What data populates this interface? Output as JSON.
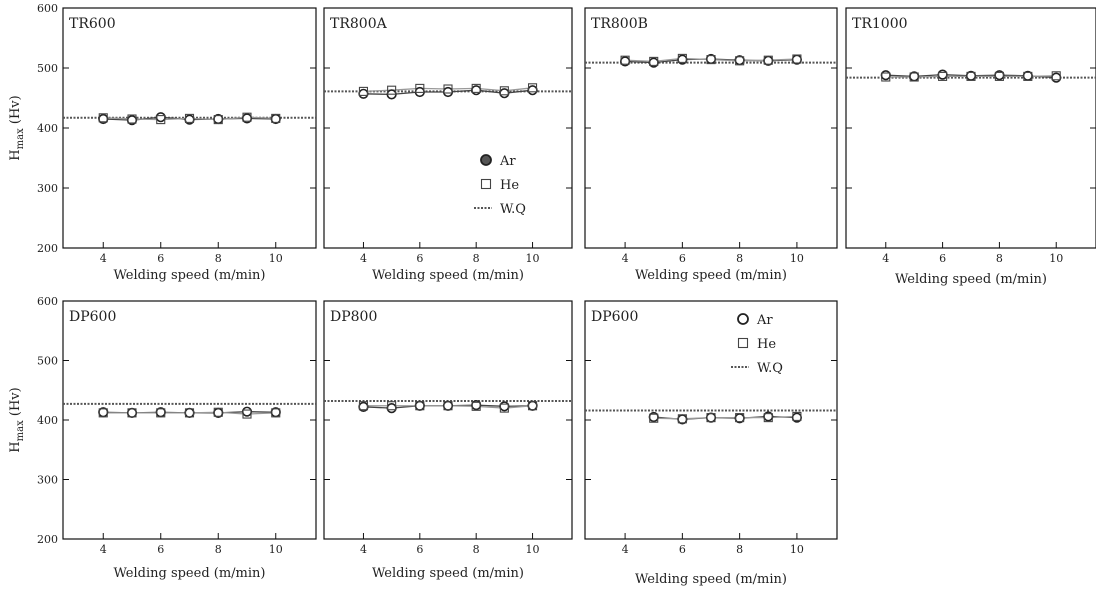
{
  "figure": {
    "y_label": "H",
    "y_label_subscript": "max",
    "y_label_unit": "(Hv)",
    "x_label": "Welding speed (m/min)"
  },
  "legend": {
    "items": [
      {
        "label": "Ar",
        "marker": "circle"
      },
      {
        "label": "He",
        "marker": "square"
      },
      {
        "label": "W.Q",
        "marker": "dotted-line"
      }
    ]
  },
  "colors": {
    "ar_marker_edge": "#222222",
    "ar_fill_legend_TR800A": "#555555",
    "he_marker_edge": "#444444",
    "ar_line": "#444444",
    "he_line": "#999999",
    "wq_line": "#555555",
    "frame": "#111111"
  },
  "chart_data": [
    {
      "type": "scatter",
      "title": "TR600",
      "ylim": [
        200,
        600
      ],
      "x_ticks": [
        4,
        6,
        8,
        10
      ],
      "y_ticks": [
        200,
        300,
        400,
        500,
        600
      ],
      "wq": 417,
      "series": [
        {
          "name": "Ar",
          "x": [
            4,
            5,
            6,
            7,
            8,
            9,
            10
          ],
          "values": [
            415,
            413,
            418,
            414,
            415,
            416,
            415
          ]
        },
        {
          "name": "He",
          "x": [
            4,
            5,
            6,
            7,
            8,
            9,
            10
          ],
          "values": [
            417,
            415,
            414,
            416,
            414,
            418,
            416
          ]
        }
      ]
    },
    {
      "type": "scatter",
      "title": "TR800A",
      "ylim": [
        200,
        600
      ],
      "x_ticks": [
        4,
        6,
        8,
        10
      ],
      "y_ticks": [
        200,
        300,
        400,
        500,
        600
      ],
      "wq": 461,
      "legend": true,
      "series": [
        {
          "name": "Ar",
          "x": [
            4,
            5,
            6,
            7,
            8,
            9,
            10
          ],
          "values": [
            457,
            456,
            460,
            460,
            463,
            458,
            463
          ]
        },
        {
          "name": "He",
          "x": [
            4,
            5,
            6,
            7,
            8,
            9,
            10
          ],
          "values": [
            461,
            463,
            466,
            465,
            466,
            462,
            467
          ]
        }
      ]
    },
    {
      "type": "scatter",
      "title": "TR800B",
      "ylim": [
        200,
        600
      ],
      "x_ticks": [
        4,
        6,
        8,
        10
      ],
      "y_ticks": [
        200,
        300,
        400,
        500,
        600
      ],
      "wq": 509,
      "series": [
        {
          "name": "Ar",
          "x": [
            4,
            5,
            6,
            7,
            8,
            9,
            10
          ],
          "values": [
            511,
            509,
            514,
            515,
            513,
            512,
            514
          ]
        },
        {
          "name": "He",
          "x": [
            4,
            5,
            6,
            7,
            8,
            9,
            10
          ],
          "values": [
            513,
            511,
            516,
            514,
            512,
            513,
            515
          ]
        }
      ]
    },
    {
      "type": "scatter",
      "title": "TR1000",
      "ylim": [
        200,
        600
      ],
      "x_ticks": [
        4,
        6,
        8,
        10
      ],
      "y_ticks": [
        200,
        300,
        400,
        500,
        600
      ],
      "wq": 484,
      "series": [
        {
          "name": "Ar",
          "x": [
            4,
            5,
            6,
            7,
            8,
            9,
            10
          ],
          "values": [
            488,
            486,
            489,
            487,
            488,
            487,
            484
          ]
        },
        {
          "name": "He",
          "x": [
            4,
            5,
            6,
            7,
            8,
            9,
            10
          ],
          "values": [
            485,
            485,
            486,
            486,
            486,
            486,
            487
          ]
        }
      ]
    },
    {
      "type": "scatter",
      "title": "DP600",
      "ylim": [
        200,
        600
      ],
      "x_ticks": [
        4,
        6,
        8,
        10
      ],
      "y_ticks": [
        200,
        300,
        400,
        500,
        600
      ],
      "wq": 427,
      "series": [
        {
          "name": "Ar",
          "x": [
            4,
            5,
            6,
            7,
            8,
            9,
            10
          ],
          "values": [
            413,
            412,
            413,
            412,
            412,
            414,
            413
          ]
        },
        {
          "name": "He",
          "x": [
            4,
            5,
            6,
            7,
            8,
            9,
            10
          ],
          "values": [
            412,
            412,
            412,
            412,
            413,
            410,
            412
          ]
        }
      ]
    },
    {
      "type": "scatter",
      "title": "DP800",
      "ylim": [
        200,
        600
      ],
      "x_ticks": [
        4,
        6,
        8,
        10
      ],
      "y_ticks": [
        200,
        300,
        400,
        500,
        600
      ],
      "wq": 432,
      "series": [
        {
          "name": "Ar",
          "x": [
            4,
            5,
            6,
            7,
            8,
            9,
            10
          ],
          "values": [
            422,
            420,
            424,
            424,
            425,
            423,
            424
          ]
        },
        {
          "name": "He",
          "x": [
            4,
            5,
            6,
            7,
            8,
            9,
            10
          ],
          "values": [
            424,
            424,
            424,
            424,
            423,
            420,
            424
          ]
        }
      ]
    },
    {
      "type": "scatter",
      "title": "DP600",
      "ylim": [
        200,
        600
      ],
      "x_ticks": [
        4,
        6,
        8,
        10
      ],
      "y_ticks": [
        200,
        300,
        400,
        500,
        600
      ],
      "wq": 416,
      "legend": true,
      "series": [
        {
          "name": "Ar",
          "x": [
            5,
            6,
            7,
            8,
            9,
            10
          ],
          "values": [
            405,
            401,
            404,
            403,
            406,
            404
          ]
        },
        {
          "name": "He",
          "x": [
            5,
            6,
            7,
            8,
            9,
            10
          ],
          "values": [
            403,
            402,
            404,
            404,
            404,
            406
          ]
        }
      ]
    }
  ]
}
